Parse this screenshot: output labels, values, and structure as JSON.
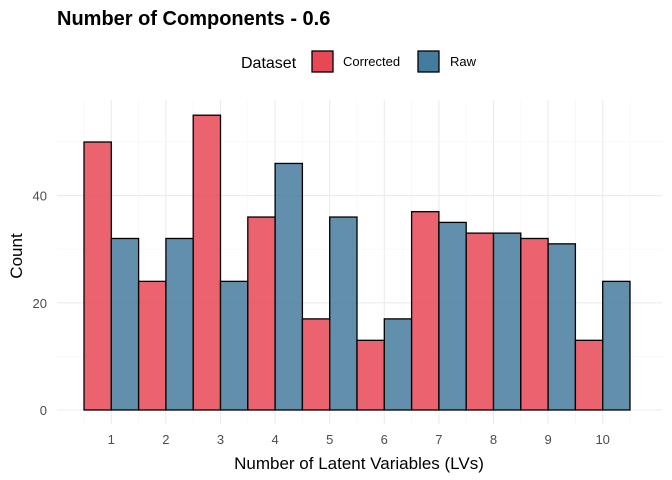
{
  "chart_data": {
    "type": "bar",
    "title": "Number of Components - 0.6",
    "xlabel": "Number of Latent Variables (LVs)",
    "ylabel": "Count",
    "categories": [
      "1",
      "2",
      "3",
      "4",
      "5",
      "6",
      "7",
      "8",
      "9",
      "10"
    ],
    "series": [
      {
        "name": "Corrected",
        "color": "#E84855",
        "values": [
          50,
          24,
          55,
          36,
          17,
          13,
          37,
          33,
          32,
          13
        ]
      },
      {
        "name": "Raw",
        "color": "#457B9D",
        "values": [
          32,
          32,
          24,
          46,
          36,
          17,
          35,
          33,
          31,
          24
        ]
      }
    ],
    "ylim": [
      0,
      57
    ],
    "yticks": [
      0,
      20,
      40
    ],
    "legend": {
      "title": "Dataset",
      "position": "top"
    },
    "grid": true
  }
}
